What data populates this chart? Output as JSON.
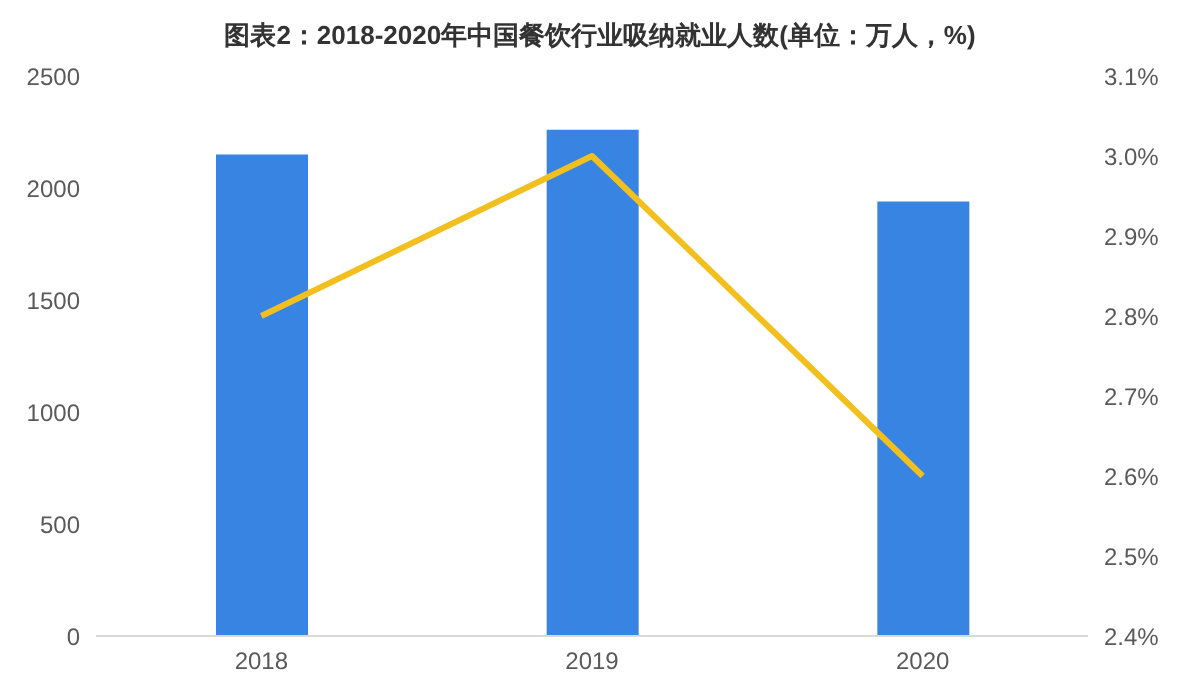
{
  "chart_data": {
    "type": "bar",
    "title": "图表2：2018-2020年中国餐饮行业吸纳就业人数(单位：万人，%)",
    "categories": [
      "2018",
      "2019",
      "2020"
    ],
    "series": [
      {
        "color": "#3784e3",
        "values": [
          2150,
          2260,
          1940
        ]
      },
      {
        "type": "line",
        "axis": "y2",
        "color": "#f2c01e",
        "values": [
          2.8,
          3.0,
          2.6
        ]
      }
    ],
    "ylim": [
      0,
      2500
    ],
    "yticks": [
      0,
      500,
      1000,
      1500,
      2000,
      2500
    ],
    "y2lim": [
      2.4,
      3.1
    ],
    "y2ticks": [
      {
        "value": 2.4,
        "label": "2.4%"
      },
      {
        "value": 2.5,
        "label": "2.5%"
      },
      {
        "value": 2.6,
        "label": "2.6%"
      },
      {
        "value": 2.7,
        "label": "2.7%"
      },
      {
        "value": 2.8,
        "label": "2.8%"
      },
      {
        "value": 2.9,
        "label": "2.9%"
      },
      {
        "value": 3.0,
        "label": "3.0%"
      },
      {
        "value": 3.1,
        "label": "3.1%"
      }
    ],
    "grid": false,
    "legend": false,
    "marker": "none"
  }
}
